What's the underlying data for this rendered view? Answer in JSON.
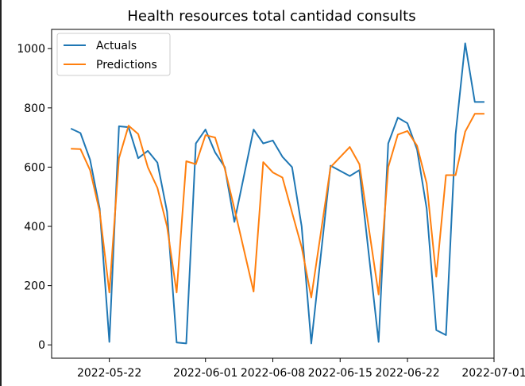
{
  "chart_data": {
    "type": "line",
    "title": "Health resources total cantidad consults",
    "xlabel": "",
    "ylabel": "",
    "x_axis": {
      "type": "date",
      "range": [
        "2022-05-16",
        "2022-07-01"
      ],
      "ticks": [
        "2022-05-22",
        "2022-06-01",
        "2022-06-08",
        "2022-06-15",
        "2022-06-22",
        "2022-07-01"
      ]
    },
    "y_axis": {
      "range": [
        -45,
        1065
      ],
      "ticks": [
        0,
        200,
        400,
        600,
        800,
        1000
      ]
    },
    "grid": false,
    "legend": {
      "position": "upper-left"
    },
    "x": [
      "2022-05-18",
      "2022-05-19",
      "2022-05-20",
      "2022-05-21",
      "2022-05-22",
      "2022-05-23",
      "2022-05-24",
      "2022-05-25",
      "2022-05-26",
      "2022-05-27",
      "2022-05-28",
      "2022-05-29",
      "2022-05-30",
      "2022-05-31",
      "2022-06-01",
      "2022-06-02",
      "2022-06-03",
      "2022-06-04",
      "2022-06-06",
      "2022-06-07",
      "2022-06-08",
      "2022-06-09",
      "2022-06-10",
      "2022-06-11",
      "2022-06-12",
      "2022-06-14",
      "2022-06-16",
      "2022-06-17",
      "2022-06-19",
      "2022-06-20",
      "2022-06-21",
      "2022-06-22",
      "2022-06-23",
      "2022-06-24",
      "2022-06-25",
      "2022-06-26",
      "2022-06-27",
      "2022-06-28",
      "2022-06-29",
      "2022-06-30"
    ],
    "series": [
      {
        "name": "Actuals",
        "color": "#1f77b4",
        "values": [
          730,
          715,
          625,
          460,
          10,
          738,
          735,
          630,
          655,
          615,
          450,
          8,
          5,
          680,
          727,
          650,
          600,
          415,
          727,
          680,
          690,
          635,
          600,
          400,
          5,
          605,
          570,
          590,
          10,
          680,
          767,
          748,
          660,
          460,
          50,
          33,
          710,
          1018,
          820,
          820
        ]
      },
      {
        "name": "Predictions",
        "color": "#ff7f0e",
        "values": [
          662,
          661,
          590,
          450,
          177,
          630,
          740,
          712,
          600,
          530,
          400,
          177,
          620,
          610,
          708,
          700,
          595,
          460,
          180,
          617,
          582,
          565,
          447,
          330,
          160,
          600,
          668,
          610,
          170,
          600,
          710,
          722,
          672,
          545,
          230,
          573,
          573,
          720,
          780,
          780
        ]
      }
    ]
  }
}
